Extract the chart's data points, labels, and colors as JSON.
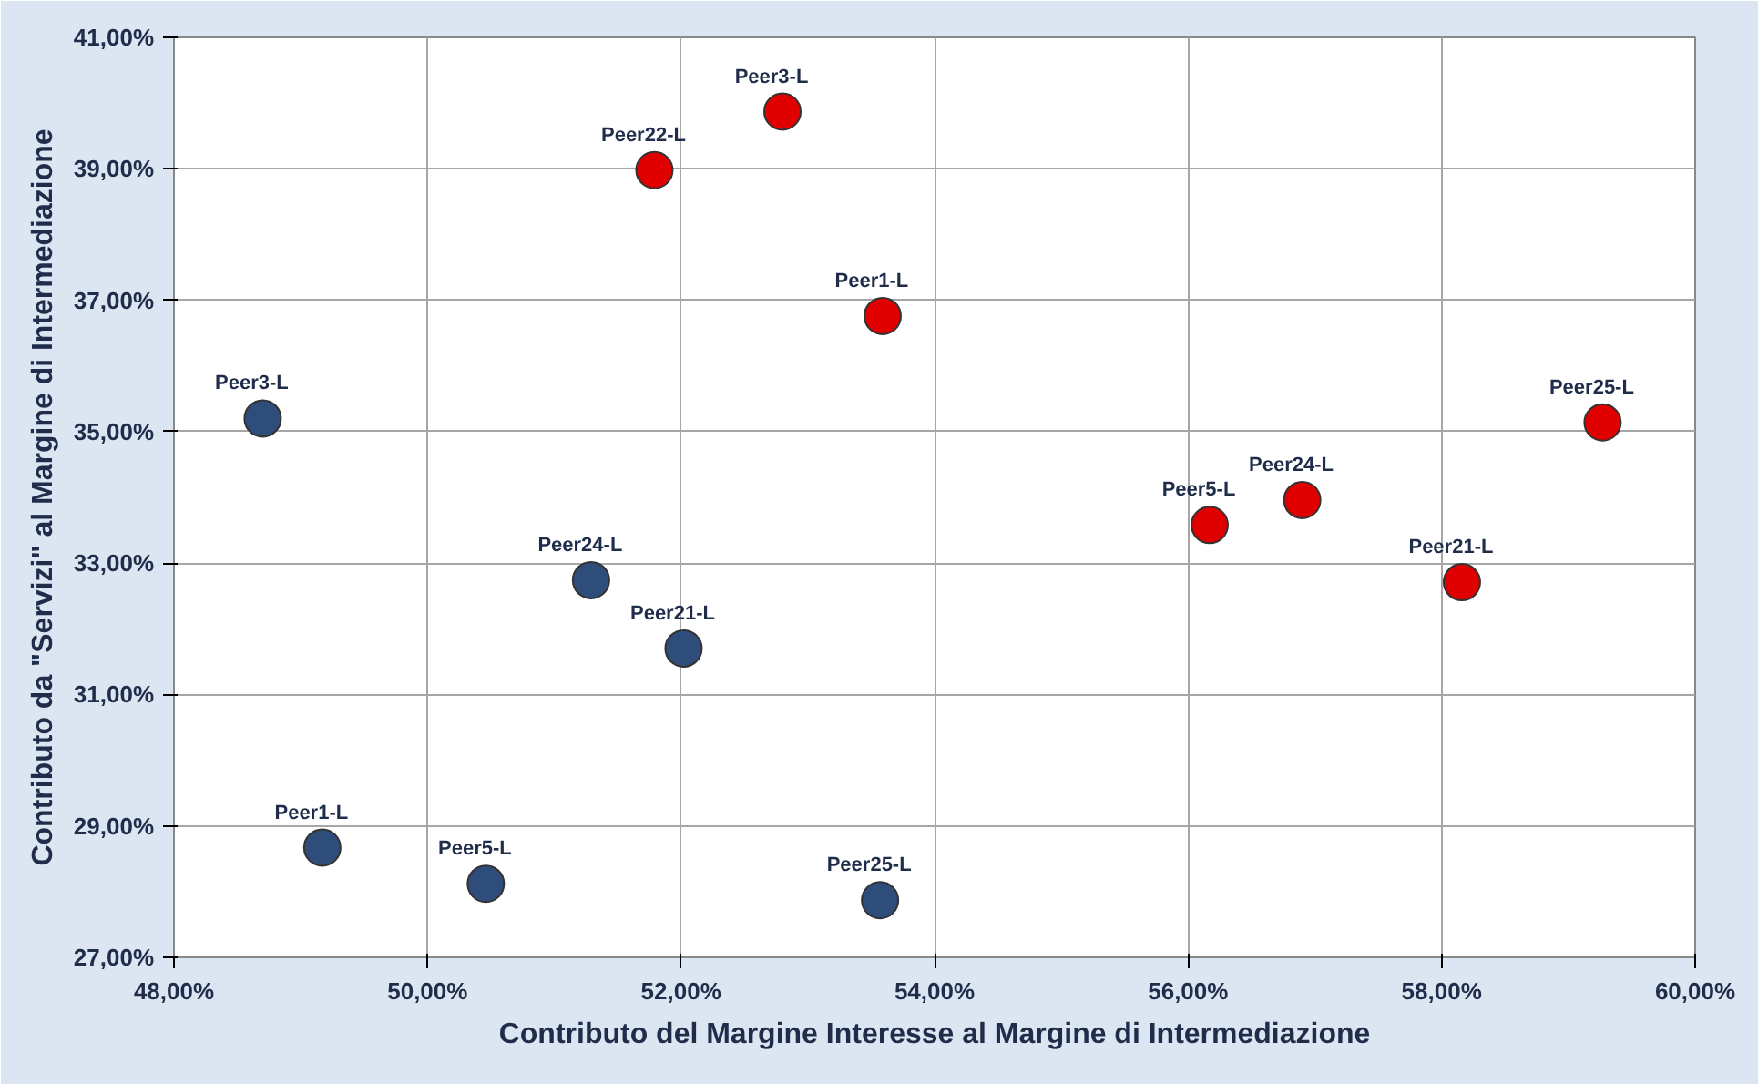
{
  "chart_data": {
    "type": "scatter",
    "xlabel": "Contributo del Margine Interesse al Margine di Intermediazione",
    "ylabel": "Contributo da \"Servizi\" al Margine di Intermediazione",
    "series": [
      {
        "color": "#e00000",
        "x": [
          52.8,
          51.79,
          53.59,
          59.27,
          56.17,
          56.9,
          58.16
        ],
        "values": [
          39.87,
          38.98,
          36.76,
          35.14,
          33.58,
          33.96,
          32.71
        ]
      },
      {
        "color": "#2e4d7b",
        "x": [
          48.7,
          51.29,
          52.02,
          49.17,
          50.46,
          53.57
        ],
        "values": [
          35.2,
          32.74,
          31.7,
          28.67,
          28.12,
          27.87
        ]
      }
    ],
    "annotations": [
      {
        "text": "Peer3-L",
        "x": 52.8,
        "y": 39.87
      },
      {
        "text": "Peer22-L",
        "x": 51.79,
        "y": 38.98
      },
      {
        "text": "Peer1-L",
        "x": 53.59,
        "y": 36.76
      },
      {
        "text": "Peer25-L",
        "x": 59.27,
        "y": 35.14
      },
      {
        "text": "Peer5-L",
        "x": 56.17,
        "y": 33.58
      },
      {
        "text": "Peer24-L",
        "x": 56.9,
        "y": 33.96
      },
      {
        "text": "Peer21-L",
        "x": 58.16,
        "y": 32.71
      },
      {
        "text": "Peer3-L",
        "x": 48.7,
        "y": 35.2
      },
      {
        "text": "Peer24-L",
        "x": 51.29,
        "y": 32.74
      },
      {
        "text": "Peer21-L",
        "x": 52.02,
        "y": 31.7
      },
      {
        "text": "Peer1-L",
        "x": 49.17,
        "y": 28.67
      },
      {
        "text": "Peer5-L",
        "x": 50.46,
        "y": 28.12
      },
      {
        "text": "Peer25-L",
        "x": 53.57,
        "y": 27.87
      }
    ],
    "xlim": [
      48,
      60
    ],
    "ylim": [
      27,
      41
    ],
    "xticks": [
      {
        "value": 48,
        "label": "48,00%"
      },
      {
        "value": 50,
        "label": "50,00%"
      },
      {
        "value": 52,
        "label": "52,00%"
      },
      {
        "value": 54,
        "label": "54,00%"
      },
      {
        "value": 56,
        "label": "56,00%"
      },
      {
        "value": 58,
        "label": "58,00%"
      },
      {
        "value": 60,
        "label": "60,00%"
      }
    ],
    "yticks": [
      {
        "value": 27,
        "label": "27,00%"
      },
      {
        "value": 29,
        "label": "29,00%"
      },
      {
        "value": 31,
        "label": "31,00%"
      },
      {
        "value": 33,
        "label": "33,00%"
      },
      {
        "value": 35,
        "label": "35,00%"
      },
      {
        "value": 37,
        "label": "37,00%"
      },
      {
        "value": 39,
        "label": "39,00%"
      },
      {
        "value": 41,
        "label": "41,00%"
      }
    ],
    "grid": true,
    "marker": "circle"
  }
}
